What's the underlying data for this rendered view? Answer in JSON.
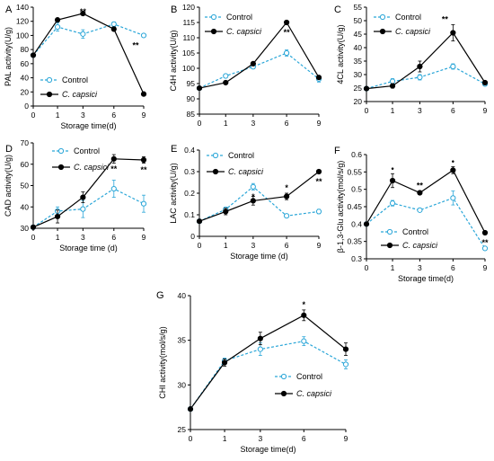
{
  "figure": {
    "colors": {
      "control": "#2aa6d8",
      "capsici": "#000000"
    },
    "x_tick_values": [
      0,
      1,
      3,
      6,
      9
    ]
  },
  "chart_data": [
    {
      "panel": "A",
      "type": "line",
      "xlabel": "Storage time(d)",
      "ylabel": "PAL activity(U/g)",
      "x": [
        0,
        1,
        3,
        6,
        9
      ],
      "ylim": [
        0,
        140
      ],
      "yticks": [
        0,
        20,
        40,
        60,
        80,
        100,
        120,
        140
      ],
      "legend_position": "bottom-left",
      "series": [
        {
          "name": "Control",
          "style": "dashed-open",
          "values": [
            72,
            112,
            102,
            116,
            100
          ],
          "errors": [
            2,
            6,
            6,
            3,
            1
          ]
        },
        {
          "name": "C. capsici",
          "style": "solid-filled",
          "values": [
            72,
            122,
            131,
            109,
            17
          ],
          "errors": [
            2,
            2,
            2,
            3,
            1
          ]
        }
      ],
      "annotations": [
        {
          "x": 3,
          "text": "**",
          "near": "upper"
        },
        {
          "x": 9,
          "text": "**",
          "near": "lower",
          "side": "left"
        }
      ]
    },
    {
      "panel": "B",
      "type": "line",
      "xlabel": "",
      "ylabel": "C4H activity(U/g)",
      "x": [
        0,
        1,
        3,
        6,
        9
      ],
      "ylim": [
        85,
        120
      ],
      "yticks": [
        85,
        90,
        95,
        100,
        105,
        110,
        115,
        120
      ],
      "legend_position": "top-left",
      "series": [
        {
          "name": "Control",
          "style": "dashed-open",
          "values": [
            93.5,
            97.5,
            100.5,
            105,
            96.5
          ],
          "errors": [
            0.5,
            0.5,
            0.6,
            1,
            1
          ]
        },
        {
          "name": "C. capsici",
          "style": "solid-filled",
          "values": [
            93.5,
            95.3,
            101.5,
            115,
            97
          ],
          "errors": [
            0.5,
            0.5,
            0.5,
            0.6,
            0.5
          ]
        }
      ],
      "annotations": [
        {
          "x": 6,
          "text": "**",
          "near": "lower"
        }
      ]
    },
    {
      "panel": "C",
      "type": "line",
      "xlabel": "",
      "ylabel": "4CL activity(U/g)",
      "x": [
        0,
        1,
        3,
        6,
        9
      ],
      "ylim": [
        20,
        55
      ],
      "yticks": [
        20,
        25,
        30,
        35,
        40,
        45,
        50,
        55
      ],
      "legend_position": "top-left",
      "series": [
        {
          "name": "Control",
          "style": "dashed-open",
          "values": [
            24.8,
            27.5,
            29,
            33,
            26.5
          ],
          "errors": [
            0.3,
            1,
            1,
            1,
            0.5
          ]
        },
        {
          "name": "C. capsici",
          "style": "solid-filled",
          "values": [
            24.8,
            25.8,
            33,
            45.5,
            27
          ],
          "errors": [
            0.3,
            0.8,
            2,
            3,
            0.5
          ]
        }
      ],
      "annotations": [
        {
          "x": 6,
          "text": "**",
          "near": "upper",
          "side": "left"
        }
      ]
    },
    {
      "panel": "D",
      "type": "line",
      "xlabel": "Storage time (d)",
      "ylabel": "CAD activity(U/g)",
      "x": [
        0,
        1,
        3,
        6,
        9
      ],
      "ylim": [
        30,
        70
      ],
      "yticks": [
        30,
        40,
        50,
        60,
        70
      ],
      "legend_position": "top-left",
      "series": [
        {
          "name": "Control",
          "style": "dashed-open",
          "values": [
            30.5,
            38,
            39,
            48.5,
            41.5
          ],
          "errors": [
            0.5,
            2,
            4,
            4,
            4
          ]
        },
        {
          "name": "C. capsici",
          "style": "solid-filled",
          "values": [
            30.5,
            35.5,
            44.5,
            62.5,
            62
          ],
          "errors": [
            0.5,
            3,
            2.5,
            2,
            1.5
          ]
        }
      ],
      "annotations": [
        {
          "x": 6,
          "text": "**",
          "near": "lower"
        },
        {
          "x": 9,
          "text": "**",
          "near": "lower"
        }
      ]
    },
    {
      "panel": "E",
      "type": "line",
      "xlabel": "Storage time (d)",
      "ylabel": "LAC activity(U/g)",
      "x": [
        0,
        1,
        3,
        6,
        9
      ],
      "ylim": [
        0,
        0.4
      ],
      "yticks": [
        0,
        0.1,
        0.2,
        0.3,
        0.4
      ],
      "legend_position": "top-left",
      "series": [
        {
          "name": "Control",
          "style": "dashed-open",
          "values": [
            0.07,
            0.125,
            0.23,
            0.095,
            0.115
          ],
          "errors": [
            0.005,
            0.01,
            0.015,
            0.005,
            0.01
          ]
        },
        {
          "name": "C. capsici",
          "style": "solid-filled",
          "values": [
            0.07,
            0.115,
            0.165,
            0.185,
            0.3
          ],
          "errors": [
            0.005,
            0.015,
            0.02,
            0.015,
            0.005
          ]
        }
      ],
      "annotations": [
        {
          "x": 3,
          "text": "*",
          "near": "lower"
        },
        {
          "x": 6,
          "text": "*",
          "near": "upper"
        },
        {
          "x": 9,
          "text": "**",
          "near": "lower"
        }
      ]
    },
    {
      "panel": "F",
      "type": "line",
      "xlabel": "Storage time(d)",
      "ylabel": "β-1,3-Glu activity(mol/s/g)",
      "x": [
        0,
        1,
        3,
        6,
        9
      ],
      "ylim": [
        0.3,
        0.6
      ],
      "yticks": [
        0.3,
        0.35,
        0.4,
        0.45,
        0.5,
        0.55,
        0.6
      ],
      "legend_position": "bottom-left",
      "series": [
        {
          "name": "Control",
          "style": "dashed-open",
          "values": [
            0.4,
            0.46,
            0.44,
            0.475,
            0.33
          ],
          "errors": [
            0.003,
            0.008,
            0.004,
            0.02,
            0.003
          ]
        },
        {
          "name": "C. capsici",
          "style": "solid-filled",
          "values": [
            0.4,
            0.525,
            0.49,
            0.555,
            0.375
          ],
          "errors": [
            0.003,
            0.02,
            0.005,
            0.01,
            0.003
          ]
        }
      ],
      "annotations": [
        {
          "x": 1,
          "text": "•",
          "near": "upper"
        },
        {
          "x": 3,
          "text": "**",
          "near": "upper"
        },
        {
          "x": 6,
          "text": "•",
          "near": "upper"
        },
        {
          "x": 9,
          "text": "**",
          "near": "lower"
        }
      ]
    },
    {
      "panel": "G",
      "type": "line",
      "xlabel": "Storage time(d)",
      "ylabel": "CHI activity(mol/s/g)",
      "x": [
        0,
        1,
        3,
        6,
        9
      ],
      "ylim": [
        25,
        40
      ],
      "yticks": [
        25,
        30,
        35,
        40
      ],
      "legend_position": "bottom-center",
      "series": [
        {
          "name": "Control",
          "style": "dashed-open",
          "values": [
            27.3,
            32.7,
            34,
            34.9,
            32.3
          ],
          "errors": [
            0.1,
            0.3,
            0.7,
            0.5,
            0.5
          ]
        },
        {
          "name": "C. capsici",
          "style": "solid-filled",
          "values": [
            27.3,
            32.5,
            35.2,
            37.8,
            34
          ],
          "errors": [
            0.1,
            0.4,
            0.7,
            0.6,
            0.7
          ]
        }
      ],
      "annotations": [
        {
          "x": 6,
          "text": "*",
          "near": "upper"
        }
      ]
    }
  ]
}
